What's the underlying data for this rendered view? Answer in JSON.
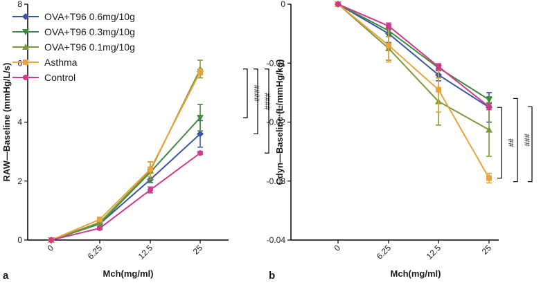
{
  "chart_data": [
    {
      "panel_label": "a",
      "type": "line",
      "categories": [
        "0",
        "6.25",
        "12.5",
        "25"
      ],
      "xlabel": "Mch(mg/ml)",
      "ylabel": "RAW—Baseline (mmHg/L/s)",
      "ylim": [
        0,
        8
      ],
      "yticks": [
        0,
        2,
        4,
        6,
        8
      ],
      "legend_position": "top-left",
      "series": [
        {
          "name": "OVA+T96 0.6mg/10g",
          "color": "#3b56a6",
          "marker": "diamond",
          "values": [
            0,
            0.55,
            2.05,
            3.6
          ],
          "errors": [
            0,
            0.05,
            0.1,
            0.45
          ]
        },
        {
          "name": "OVA+T96 0.3mg/10g",
          "color": "#3e8a3e",
          "marker": "triangle-down",
          "values": [
            0,
            0.55,
            2.3,
            4.15
          ],
          "errors": [
            0,
            0.05,
            0.35,
            0.45
          ]
        },
        {
          "name": "OVA+T96 0.1mg/10g",
          "color": "#7d9a3a",
          "marker": "triangle-up",
          "values": [
            0,
            0.6,
            2.35,
            5.8
          ],
          "errors": [
            0,
            0.05,
            0.3,
            0.3
          ]
        },
        {
          "name": "Asthma",
          "color": "#e8a33d",
          "marker": "square",
          "values": [
            0,
            0.7,
            2.4,
            5.7
          ],
          "errors": [
            0,
            0.05,
            0.25,
            0.1
          ]
        },
        {
          "name": "Control",
          "color": "#cf3b8c",
          "marker": "circle",
          "values": [
            0,
            0.4,
            1.7,
            2.95
          ],
          "errors": [
            0,
            0.05,
            0.1,
            0.05
          ]
        }
      ],
      "annotations": [
        {
          "text": "####",
          "from": 5.8,
          "to": 4.15
        },
        {
          "text": "####",
          "from": 5.8,
          "to": 3.6
        },
        {
          "text": "****",
          "from": 5.8,
          "to": 2.95
        }
      ]
    },
    {
      "panel_label": "b",
      "type": "line",
      "categories": [
        "0",
        "6.25",
        "12.5",
        "25"
      ],
      "xlabel": "Mch(mg/ml)",
      "ylabel": "Cdyn—Baseline (L/mmHg/kg)",
      "ylim": [
        -0.04,
        0
      ],
      "yticks": [
        0,
        -0.01,
        -0.02,
        -0.03,
        -0.04
      ],
      "series": [
        {
          "name": "OVA+T96 0.6mg/10g",
          "color": "#3b56a6",
          "marker": "diamond",
          "values": [
            0,
            -0.005,
            -0.012,
            -0.0175
          ],
          "errors": [
            0,
            0.0015,
            0.001,
            0.0025
          ]
        },
        {
          "name": "OVA+T96 0.3mg/10g",
          "color": "#3e8a3e",
          "marker": "triangle-down",
          "values": [
            0,
            -0.0045,
            -0.0108,
            -0.0162
          ],
          "errors": [
            0,
            0.0005,
            0.0005,
            0.0005
          ]
        },
        {
          "name": "OVA+T96 0.1mg/10g",
          "color": "#7d9a3a",
          "marker": "triangle-up",
          "values": [
            0,
            -0.0075,
            -0.0165,
            -0.0213
          ],
          "errors": [
            0,
            0.002,
            0.004,
            0.0045
          ]
        },
        {
          "name": "Asthma",
          "color": "#e8a33d",
          "marker": "square",
          "values": [
            0,
            -0.007,
            -0.0145,
            -0.0295
          ],
          "errors": [
            0,
            0.0028,
            0.0038,
            0.0008
          ]
        },
        {
          "name": "Control",
          "color": "#cf3b8c",
          "marker": "circle",
          "values": [
            0,
            -0.0037,
            -0.0106,
            -0.0174
          ],
          "errors": [
            0,
            0.0005,
            0.0005,
            0.0005
          ]
        }
      ],
      "annotations": [
        {
          "text": "##",
          "from": -0.0175,
          "to": -0.0295
        },
        {
          "text": "###",
          "from": -0.016,
          "to": -0.0301
        },
        {
          "text": "**",
          "from": -0.0174,
          "to": -0.0301
        }
      ]
    }
  ]
}
